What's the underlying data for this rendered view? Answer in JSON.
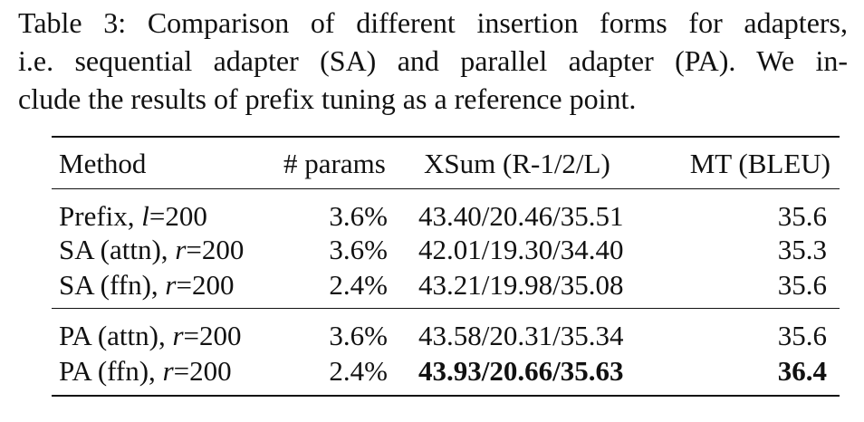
{
  "caption": {
    "lines": [
      "Table 3: Comparison of different insertion forms for adapters,",
      "i.e. sequential adapter (SA) and parallel adapter (PA). We in-",
      "clude the results of prefix tuning as a reference point."
    ]
  },
  "table": {
    "headers": [
      "Method",
      "# params",
      "XSum (R-1/2/L)",
      "MT (BLEU)"
    ],
    "rows": [
      {
        "method": "Prefix, ",
        "var": "l",
        "eq": "=200",
        "params": "3.6%",
        "xsum": "43.40/20.46/35.51",
        "mt": "35.6"
      },
      {
        "method": "SA (attn), ",
        "var": "r",
        "eq": "=200",
        "params": "3.6%",
        "xsum": "42.01/19.30/34.40",
        "mt": "35.3"
      },
      {
        "method": "SA (ffn), ",
        "var": "r",
        "eq": "=200",
        "params": "2.4%",
        "xsum": "43.21/19.98/35.08",
        "mt": "35.6"
      },
      {
        "method": "PA (attn), ",
        "var": "r",
        "eq": "=200",
        "params": "3.6%",
        "xsum": "43.58/20.31/35.34",
        "mt": "35.6"
      },
      {
        "method": "PA (ffn), ",
        "var": "r",
        "eq": "=200",
        "params": "2.4%",
        "xsum": "43.93/20.66/35.63",
        "mt": "36.4"
      }
    ]
  }
}
